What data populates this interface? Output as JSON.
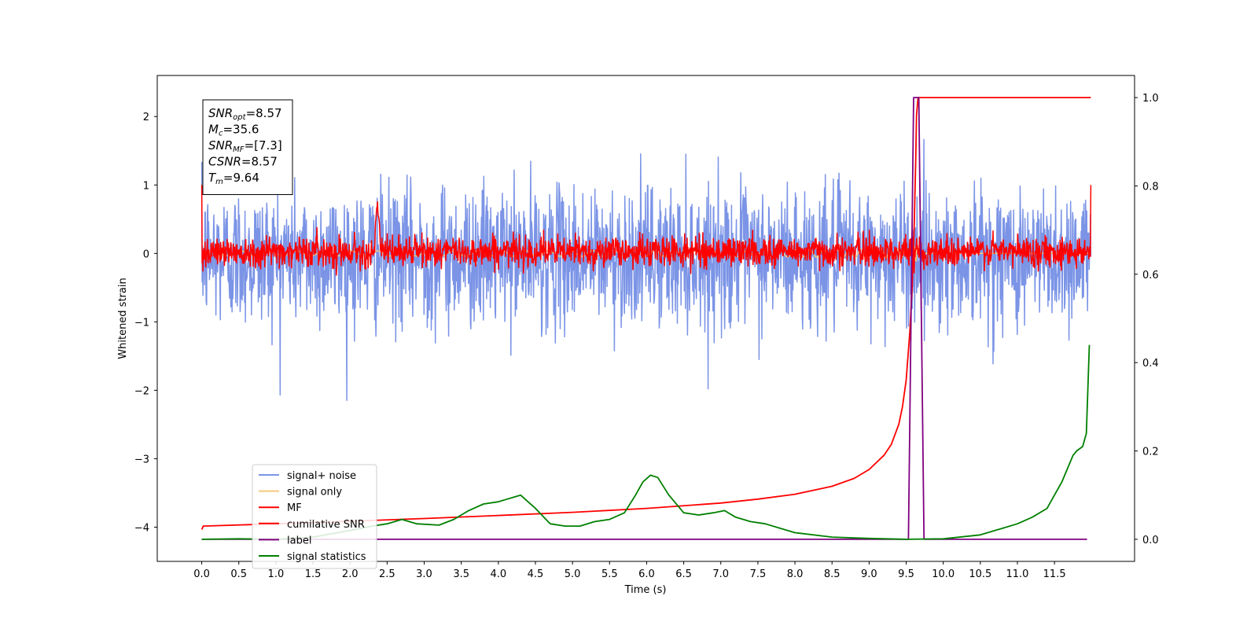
{
  "chart_data": {
    "type": "line",
    "xlabel": "Time (s)",
    "ylabel": "Whitened strain",
    "xlim": [
      -0.6,
      12.58
    ],
    "ylim": [
      -4.5,
      2.6
    ],
    "y2lim": [
      -0.05,
      1.05
    ],
    "x_ticks": [
      "0.0",
      "0.5",
      "1.0",
      "1.5",
      "2.0",
      "2.5",
      "3.0",
      "3.5",
      "4.0",
      "4.5",
      "5.0",
      "5.5",
      "6.0",
      "6.5",
      "7.0",
      "7.5",
      "8.0",
      "8.5",
      "9.0",
      "9.5",
      "10.0",
      "10.5",
      "11.0",
      "11.5"
    ],
    "y_ticks": [
      "2",
      "1",
      "0",
      "−1",
      "−2",
      "−3",
      "−4"
    ],
    "y2_ticks": [
      "1.0",
      "0.8",
      "0.6",
      "0.4",
      "0.2",
      "0.0"
    ],
    "legend_position": "lower-left",
    "annotation": {
      "lines": [
        {
          "base": "SNR",
          "sub": "opt",
          "value": "=8.57"
        },
        {
          "base": "M",
          "sub": "c",
          "value": "=35.6"
        },
        {
          "base": "SNR",
          "sub": "MF",
          "value": "=[7.3]"
        },
        {
          "base": "CSNR",
          "sub": "",
          "value": "=8.57"
        },
        {
          "base": "T",
          "sub": "m",
          "value": "=9.64"
        }
      ]
    },
    "series": [
      {
        "name": "signal+ noise",
        "color": "#7b94e6",
        "axis": "left",
        "t_range": [
          0,
          11.99
        ],
        "noise_std": 0.5,
        "t_merger": 9.64
      },
      {
        "name": "signal only",
        "color": "#f5c97a",
        "axis": "left",
        "t_range": [
          0,
          11.99
        ],
        "t_merger": 9.64
      },
      {
        "name": "MF",
        "color": "#ff0000",
        "axis": "left",
        "t_range": [
          0,
          11.99
        ],
        "noise_std": 0.11,
        "edge_values": [
          1.0,
          1.0
        ],
        "bump": {
          "t": 2.37,
          "value": 0.75
        }
      },
      {
        "name": "cumilative SNR",
        "color": "#ff0000",
        "axis": "right",
        "x": [
          0,
          0.02,
          1,
          2,
          3,
          4,
          5,
          6,
          7,
          7.5,
          8,
          8.5,
          8.8,
          9.0,
          9.2,
          9.3,
          9.4,
          9.45,
          9.5,
          9.55,
          9.58,
          9.61,
          9.63,
          9.64,
          9.66,
          11.99
        ],
        "values": [
          0.022,
          0.03,
          0.035,
          0.041,
          0.047,
          0.054,
          0.061,
          0.07,
          0.082,
          0.091,
          0.102,
          0.12,
          0.138,
          0.158,
          0.19,
          0.215,
          0.26,
          0.3,
          0.36,
          0.47,
          0.57,
          0.72,
          0.87,
          0.96,
          1.0,
          1.0
        ]
      },
      {
        "name": "label",
        "color": "#800080",
        "axis": "right",
        "x": [
          0,
          9.53,
          9.6,
          9.67,
          9.74,
          11.94
        ],
        "values": [
          0,
          0,
          1.0,
          1.0,
          0,
          0
        ]
      },
      {
        "name": "signal statistics",
        "color": "#008000",
        "axis": "right",
        "x": [
          0,
          0.5,
          1,
          1.5,
          2.0,
          2.3,
          2.5,
          2.7,
          2.9,
          3.2,
          3.4,
          3.6,
          3.8,
          4.0,
          4.1,
          4.3,
          4.5,
          4.7,
          4.9,
          5.1,
          5.3,
          5.5,
          5.7,
          5.85,
          5.95,
          6.05,
          6.15,
          6.3,
          6.5,
          6.7,
          6.9,
          7.05,
          7.2,
          7.4,
          7.6,
          7.8,
          8.0,
          8.5,
          9.0,
          9.5,
          10.0,
          10.5,
          10.8,
          11.0,
          11.2,
          11.4,
          11.5,
          11.6,
          11.7,
          11.75,
          11.8,
          11.88,
          11.93,
          11.97
        ],
        "values": [
          0,
          0.001,
          0,
          0.005,
          0.02,
          0.03,
          0.035,
          0.045,
          0.035,
          0.032,
          0.045,
          0.065,
          0.08,
          0.085,
          0.09,
          0.1,
          0.07,
          0.035,
          0.03,
          0.03,
          0.04,
          0.045,
          0.06,
          0.1,
          0.13,
          0.145,
          0.14,
          0.1,
          0.06,
          0.055,
          0.06,
          0.065,
          0.05,
          0.04,
          0.035,
          0.025,
          0.015,
          0.005,
          0.002,
          0.0,
          0.001,
          0.01,
          0.025,
          0.035,
          0.05,
          0.07,
          0.1,
          0.13,
          0.17,
          0.19,
          0.2,
          0.21,
          0.24,
          0.44
        ]
      }
    ]
  }
}
